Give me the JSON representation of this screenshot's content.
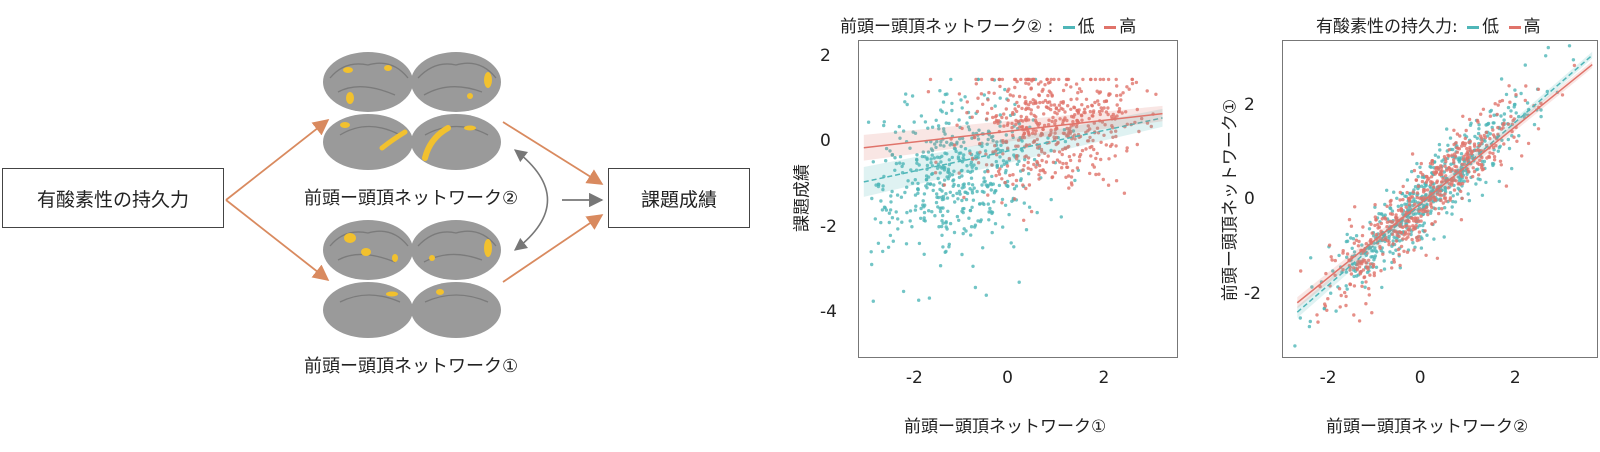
{
  "diagram": {
    "left_box": "有酸素性の持久力",
    "right_box": "課題成績",
    "network2_label": "前頭ー頭頂ネットワーク②",
    "network1_label": "前頭ー頭頂ネットワーク①"
  },
  "colors": {
    "arrow": "#d98a5f",
    "gray_arrow": "#777777",
    "brain": "#9a9a9a",
    "activation": "#f2c12e",
    "low": "#4fb6b8",
    "high": "#e0736a"
  },
  "chart_data": [
    {
      "type": "scatter",
      "title": "前頭ー頭頂ネットワーク② :",
      "legend": [
        {
          "name": "低",
          "color": "#4fb6b8"
        },
        {
          "name": "高",
          "color": "#e0736a"
        }
      ],
      "xlabel": "前頭ー頭頂ネットワーク①",
      "ylabel": "課題成績",
      "xlim": [
        -3.2,
        3.4
      ],
      "ylim": [
        -5.0,
        2.4
      ],
      "xticks": [
        -2,
        0,
        2
      ],
      "yticks": [
        2,
        0,
        -2,
        -4
      ],
      "series": [
        {
          "name": "低",
          "x_range": [
            -3.1,
            3.1
          ],
          "fit": [
            [
              -3.1,
              -0.9
            ],
            [
              3.1,
              0.6
            ]
          ],
          "dashed": true
        },
        {
          "name": "高",
          "x_range": [
            -3.1,
            3.1
          ],
          "fit": [
            [
              -3.1,
              -0.1
            ],
            [
              3.1,
              0.7
            ]
          ],
          "dashed": false
        }
      ]
    },
    {
      "type": "scatter",
      "title": "有酸素性の持久力:",
      "legend": [
        {
          "name": "低",
          "color": "#4fb6b8"
        },
        {
          "name": "高",
          "color": "#e0736a"
        }
      ],
      "xlabel": "前頭ー頭頂ネットワーク②",
      "ylabel": "前頭ー頭頂ネットワーク①",
      "xlim": [
        -3.0,
        3.6
      ],
      "ylim": [
        -3.3,
        3.4
      ],
      "xticks": [
        -2,
        0,
        2
      ],
      "yticks": [
        2,
        0,
        -2
      ],
      "series": [
        {
          "name": "低",
          "fit": [
            [
              -2.7,
              -2.35
            ],
            [
              3.5,
              3.1
            ]
          ],
          "dashed": true
        },
        {
          "name": "高",
          "fit": [
            [
              -2.7,
              -2.15
            ],
            [
              3.5,
              2.9
            ]
          ],
          "dashed": false
        }
      ]
    }
  ]
}
